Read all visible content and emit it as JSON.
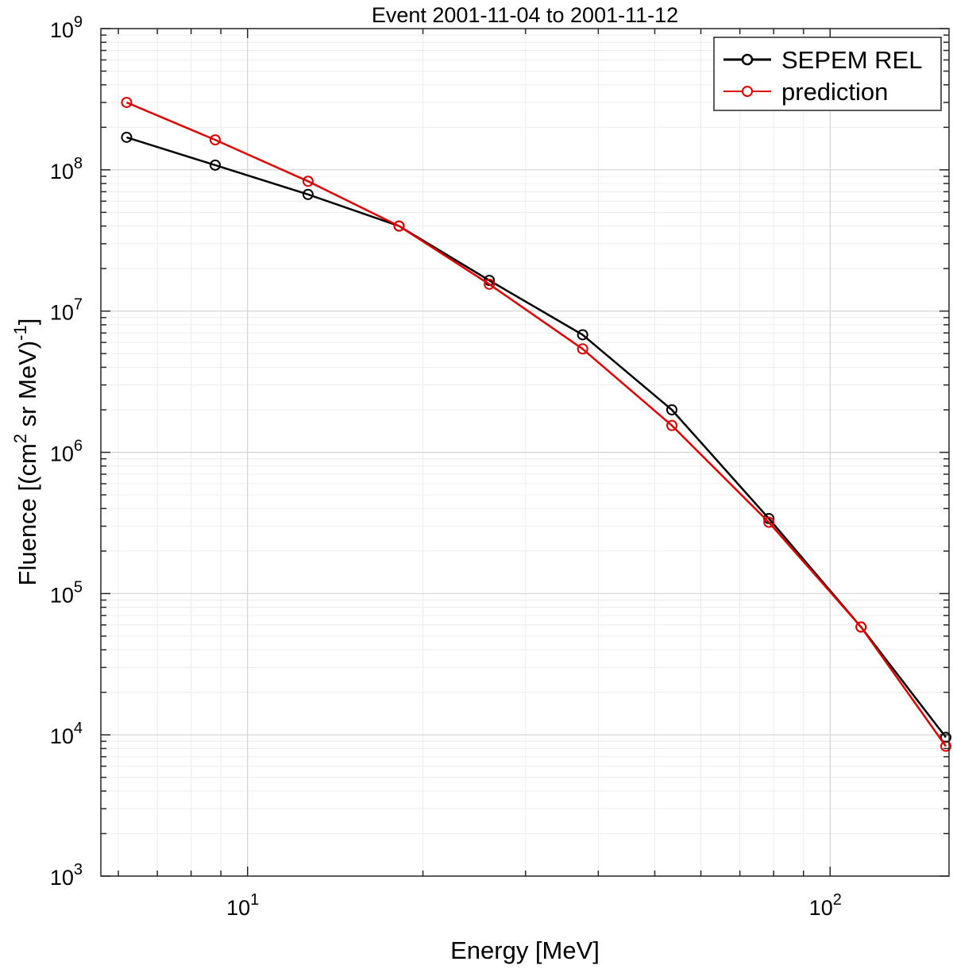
{
  "chart_data": {
    "type": "line",
    "title": "Event 2001-11-04 to 2001-11-12",
    "xlabel": "Energy [MeV]",
    "ylabel": {
      "prefix": "Fluence [(cm",
      "sup1": "2",
      "middle": " sr MeV)",
      "sup2": "-1",
      "suffix": "]"
    },
    "xscale": "log",
    "yscale": "log",
    "xlim": [
      5.6,
      160
    ],
    "ylim": [
      1000,
      1000000000
    ],
    "xticks": [
      {
        "value": 10,
        "base": "10",
        "exp": "1"
      },
      {
        "value": 100,
        "base": "10",
        "exp": "2"
      }
    ],
    "yticks": [
      {
        "value": 1000,
        "base": "10",
        "exp": "3"
      },
      {
        "value": 10000,
        "base": "10",
        "exp": "4"
      },
      {
        "value": 100000,
        "base": "10",
        "exp": "5"
      },
      {
        "value": 1000000,
        "base": "10",
        "exp": "6"
      },
      {
        "value": 10000000,
        "base": "10",
        "exp": "7"
      },
      {
        "value": 100000000,
        "base": "10",
        "exp": "8"
      },
      {
        "value": 1000000000,
        "base": "10",
        "exp": "9"
      }
    ],
    "grid": true,
    "legend_position": "top-right",
    "series": [
      {
        "name": "SEPEM REL",
        "color": "#000000",
        "marker": "circle",
        "x": [
          6.2,
          8.8,
          12.7,
          18.2,
          26.0,
          37.6,
          53.5,
          78.5,
          113,
          158
        ],
        "y": [
          170000000,
          108000000,
          67000000,
          40000000,
          16500000,
          6800000,
          2000000,
          340000,
          58000,
          9600
        ]
      },
      {
        "name": "prediction",
        "color": "#e00000",
        "marker": "circle",
        "x": [
          6.2,
          8.8,
          12.7,
          18.2,
          26.0,
          37.6,
          53.5,
          78.5,
          113,
          158
        ],
        "y": [
          300000000,
          163000000,
          83000000,
          40000000,
          15500000,
          5400000,
          1550000,
          320000,
          58000,
          8300
        ]
      }
    ]
  }
}
